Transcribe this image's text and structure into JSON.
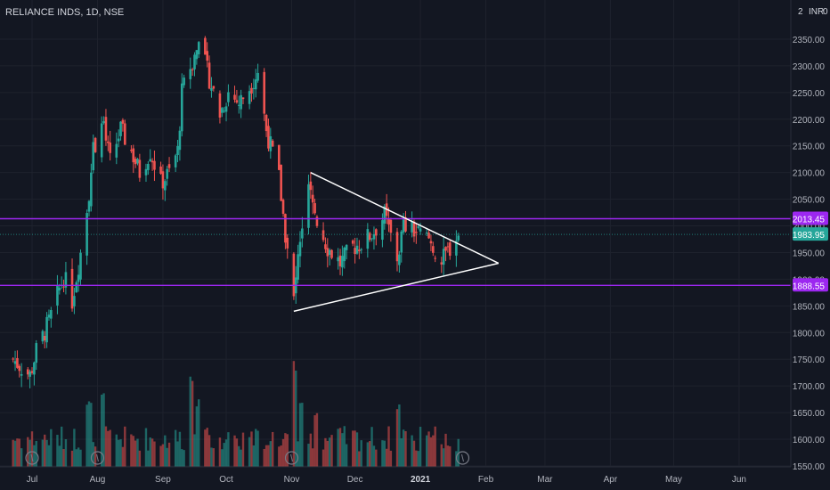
{
  "header": {
    "symbol": "RELIANCE INDS, 1D, NSE",
    "currency": "INR",
    "corner": "2",
    "corner2": "0"
  },
  "colors": {
    "bg": "#131722",
    "up": "#26a69a",
    "down": "#ef5350",
    "level": "#9c27f0",
    "text": "#b2b5be",
    "grid": "#1e222d"
  },
  "chart_data": {
    "type": "candlestick",
    "title": "RELIANCE INDS, 1D, NSE",
    "x_ticks": [
      "Jul",
      "Aug",
      "Sep",
      "Oct",
      "Nov",
      "Dec",
      "2021",
      "Feb",
      "Mar",
      "Apr",
      "May",
      "Jun"
    ],
    "y_ticks": [
      1550,
      1600,
      1650,
      1700,
      1750,
      1800,
      1850,
      1900,
      1950,
      2000,
      2050,
      2100,
      2150,
      2200,
      2250,
      2300,
      2350
    ],
    "ylim": [
      1545,
      2400
    ],
    "levels": [
      {
        "name": "resistance",
        "value": 2013.45,
        "label": "2013.45",
        "color": "#9c27f0"
      },
      {
        "name": "support",
        "value": 1888.55,
        "label": "1888.55",
        "color": "#9c27f0"
      }
    ],
    "last_price": {
      "value": 1983.95,
      "label": "1983.95",
      "color": "#26a69a"
    },
    "triangle": {
      "upper": [
        [
          "Nov 10",
          2100
        ],
        [
          "Feb 7",
          1930
        ]
      ],
      "lower": [
        [
          "Nov 2",
          1840
        ],
        [
          "Feb 7",
          1930
        ]
      ]
    },
    "price_path": [
      [
        "Jun 22",
        1750
      ],
      [
        "Jun 30",
        1720
      ],
      [
        "Jul 3",
        1765
      ],
      [
        "Jul 9",
        1820
      ],
      [
        "Jul 13",
        1870
      ],
      [
        "Jul 16",
        1905
      ],
      [
        "Jul 20",
        1860
      ],
      [
        "Jul 24",
        1950
      ],
      [
        "Jul 27",
        2030
      ],
      [
        "Jul 30",
        2140
      ],
      [
        "Aug 3",
        2200
      ],
      [
        "Aug 7",
        2120
      ],
      [
        "Aug 12",
        2180
      ],
      [
        "Aug 17",
        2140
      ],
      [
        "Aug 21",
        2100
      ],
      [
        "Aug 26",
        2140
      ],
      [
        "Aug 31",
        2080
      ],
      [
        "Sep 4",
        2100
      ],
      [
        "Sep 8",
        2140
      ],
      [
        "Sep 10",
        2250
      ],
      [
        "Sep 14",
        2300
      ],
      [
        "Sep 18",
        2340
      ],
      [
        "Sep 22",
        2290
      ],
      [
        "Sep 28",
        2210
      ],
      [
        "Oct 2",
        2250
      ],
      [
        "Oct 7",
        2230
      ],
      [
        "Oct 12",
        2260
      ],
      [
        "Oct 16",
        2290
      ],
      [
        "Oct 20",
        2180
      ],
      [
        "Oct 26",
        2090
      ],
      [
        "Oct 30",
        1950
      ],
      [
        "Nov 2",
        1860
      ],
      [
        "Nov 5",
        1980
      ],
      [
        "Nov 9",
        2070
      ],
      [
        "Nov 13",
        2010
      ],
      [
        "Nov 18",
        1960
      ],
      [
        "Nov 24",
        1930
      ],
      [
        "Nov 30",
        1960
      ],
      [
        "Dec 5",
        1970
      ],
      [
        "Dec 10",
        1990
      ],
      [
        "Dec 15",
        2020
      ],
      [
        "Dec 21",
        1940
      ],
      [
        "Dec 24",
        2000
      ],
      [
        "Dec 29",
        1990
      ],
      [
        "Jan 5",
        1975
      ],
      [
        "Jan 11",
        1930
      ],
      [
        "Jan 15",
        1960
      ],
      [
        "Jan 19",
        1985
      ]
    ],
    "volume_peaks": [
      [
        "Jul 28",
        0.55
      ],
      [
        "Aug 3",
        0.6
      ],
      [
        "Sep 14",
        0.75
      ],
      [
        "Sep 18",
        0.55
      ],
      [
        "Nov 2",
        0.85
      ],
      [
        "Nov 6",
        0.55
      ],
      [
        "Nov 13",
        0.45
      ],
      [
        "Dec 21",
        0.5
      ]
    ],
    "markers": [
      "Jul 1",
      "Aug 1",
      "Nov 1",
      "Jan 21"
    ]
  }
}
